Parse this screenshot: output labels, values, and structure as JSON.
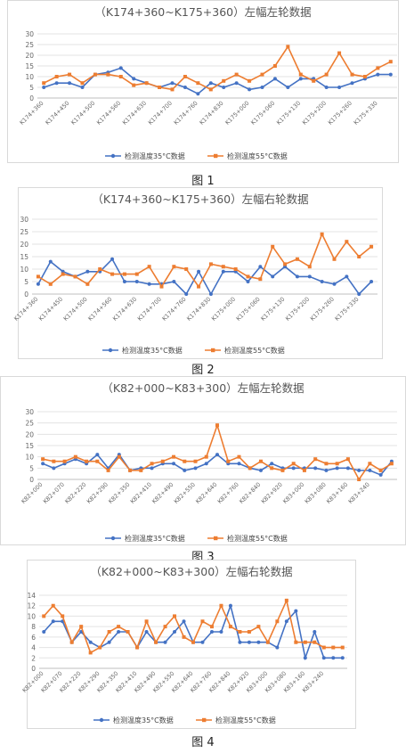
{
  "charts": [
    {
      "caption": "图 1",
      "chart_data": {
        "type": "line",
        "title": "（K174+360~K175+360）左幅左轮数据",
        "ylim": [
          0,
          30
        ],
        "yticks": [
          0,
          5,
          10,
          15,
          20,
          25,
          30
        ],
        "grid": true,
        "legend_placement": "bottom",
        "categories": [
          "K174+360",
          "K174+420",
          "K174+450",
          "K174+480",
          "K174+500",
          "K174+530",
          "K174+560",
          "K174+590",
          "K174+630",
          "K174+660",
          "K174+700",
          "K174+730",
          "K174+760",
          "K174+790",
          "K174+830",
          "K174+860",
          "K175+000",
          "K175+030",
          "K175+060",
          "K175+100",
          "K175+130",
          "K175+160",
          "K175+200",
          "K175+230",
          "K175+260",
          "K175+290",
          "K175+330",
          "K175+360"
        ],
        "tick_labels": [
          "K174+360",
          "K174+450",
          "K174+500",
          "K174+560",
          "K174+630",
          "K174+700",
          "K174+760",
          "K174+830",
          "K175+000",
          "K175+060",
          "K175+130",
          "K175+200",
          "K175+260",
          "K175+330"
        ],
        "series": [
          {
            "name": "检测温度35°C数据",
            "color": "#4472C4",
            "values": [
              5,
              7,
              7,
              5,
              11,
              12,
              14,
              9,
              7,
              5,
              7,
              5,
              2,
              7,
              5,
              7,
              4,
              5,
              9,
              5,
              9,
              9,
              5,
              5,
              7,
              9,
              11,
              11
            ]
          },
          {
            "name": "检测温度55°C数据",
            "color": "#ED7D31",
            "values": [
              7,
              10,
              11,
              7,
              11,
              11,
              10,
              6,
              7,
              5,
              4,
              10,
              7,
              4,
              8,
              11,
              8,
              11,
              15,
              24,
              11,
              8,
              11,
              21,
              11,
              10,
              14,
              17
            ]
          }
        ]
      }
    },
    {
      "caption": "图 2",
      "chart_data": {
        "type": "line",
        "title": "（K174+360~K175+360）左幅右轮数据",
        "ylim": [
          0,
          30
        ],
        "yticks": [
          0,
          5,
          10,
          15,
          20,
          25,
          30
        ],
        "grid": true,
        "legend_placement": "bottom",
        "categories": [
          "K174+360",
          "K174+420",
          "K174+450",
          "K174+480",
          "K174+500",
          "K174+530",
          "K174+560",
          "K174+590",
          "K174+630",
          "K174+660",
          "K174+700",
          "K174+730",
          "K174+760",
          "K174+790",
          "K174+830",
          "K174+860",
          "K175+000",
          "K175+030",
          "K175+060",
          "K175+100",
          "K175+130",
          "K175+160",
          "K175+200",
          "K175+230",
          "K175+260",
          "K175+290",
          "K175+330",
          "K175+360"
        ],
        "tick_labels": [
          "K174+360",
          "K174+450",
          "K174+500",
          "K174+560",
          "K174+630",
          "K174+700",
          "K174+760",
          "K174+830",
          "K175+000",
          "K175+060",
          "K175+130",
          "K175+200",
          "K175+260",
          "K175+330"
        ],
        "series": [
          {
            "name": "检测温度35°C数据",
            "color": "#4472C4",
            "values": [
              4,
              13,
              9,
              7,
              9,
              9,
              14,
              5,
              5,
              4,
              4,
              5,
              0,
              9,
              0,
              9,
              9,
              5,
              11,
              7,
              11,
              7,
              7,
              5,
              4,
              7,
              0,
              5
            ]
          },
          {
            "name": "检测温度55°C数据",
            "color": "#ED7D31",
            "values": [
              7,
              4,
              8,
              7,
              4,
              10,
              8,
              8,
              8,
              11,
              3,
              11,
              10,
              3,
              12,
              11,
              10,
              7,
              6,
              19,
              12,
              14,
              11,
              24,
              14,
              21,
              15,
              19
            ]
          }
        ]
      }
    },
    {
      "caption": "图 3",
      "chart_data": {
        "type": "line",
        "title": "（K82+000~K83+300）左幅左轮数据",
        "ylim": [
          0,
          30
        ],
        "yticks": [
          0,
          5,
          10,
          15,
          20,
          25,
          30
        ],
        "grid": true,
        "legend_placement": "bottom",
        "categories": [
          "K82+000",
          "K82+040",
          "K82+070",
          "K82+150",
          "K82+220",
          "K82+260",
          "K82+290",
          "K82+320",
          "K82+350",
          "K82+380",
          "K82+410",
          "K82+450",
          "K82+490",
          "K82+520",
          "K82+550",
          "K82+600",
          "K82+640",
          "K82+700",
          "K82+760",
          "K82+800",
          "K82+840",
          "K82+880",
          "K82+920",
          "K82+960",
          "K83+000",
          "K83+040",
          "K83+080",
          "K83+120",
          "K83+160",
          "K83+200",
          "K83+240",
          "K83+280",
          "K83+300"
        ],
        "tick_labels": [
          "K82+000",
          "K82+070",
          "K82+220",
          "K82+290",
          "K82+350",
          "K82+410",
          "K82+490",
          "K82+550",
          "K82+640",
          "K82+760",
          "K82+840",
          "K82+920",
          "K83+000",
          "K83+080",
          "K83+160",
          "K83+240"
        ],
        "series": [
          {
            "name": "检测温度35°C数据",
            "color": "#4472C4",
            "values": [
              7,
              5,
              7,
              9,
              7,
              11,
              5,
              11,
              4,
              5,
              5,
              7,
              7,
              4,
              5,
              7,
              11,
              7,
              7,
              5,
              4,
              7,
              5,
              5,
              5,
              5,
              4,
              5,
              5,
              4,
              4,
              2,
              8
            ]
          },
          {
            "name": "检测温度55°C数据",
            "color": "#ED7D31",
            "values": [
              9,
              8,
              8,
              10,
              8,
              8,
              4,
              10,
              4,
              4,
              7,
              8,
              10,
              8,
              8,
              10,
              24,
              8,
              10,
              5,
              8,
              5,
              4,
              7,
              4,
              9,
              7,
              7,
              9,
              0,
              7,
              4,
              7
            ]
          }
        ]
      }
    },
    {
      "caption": "图 4",
      "chart_data": {
        "type": "line",
        "title": "（K82+000~K83+300）左幅右轮数据",
        "ylim": [
          0,
          14
        ],
        "yticks": [
          0,
          2,
          4,
          6,
          8,
          10,
          12,
          14
        ],
        "grid": true,
        "legend_placement": "bottom",
        "categories": [
          "K82+000",
          "K82+040",
          "K82+070",
          "K82+150",
          "K82+220",
          "K82+260",
          "K82+290",
          "K82+320",
          "K82+350",
          "K82+380",
          "K82+410",
          "K82+450",
          "K82+490",
          "K82+520",
          "K82+550",
          "K82+600",
          "K82+640",
          "K82+700",
          "K82+760",
          "K82+800",
          "K82+840",
          "K82+880",
          "K82+920",
          "K82+960",
          "K83+000",
          "K83+040",
          "K83+080",
          "K83+120",
          "K83+160",
          "K83+200",
          "K83+240",
          "K83+280",
          "K83+300"
        ],
        "tick_labels": [
          "K82+000",
          "K82+070",
          "K82+220",
          "K82+290",
          "K82+350",
          "K82+410",
          "K82+490",
          "K82+550",
          "K82+640",
          "K82+760",
          "K82+840",
          "K82+920",
          "K83+000",
          "K83+080",
          "K83+160",
          "K83+240"
        ],
        "series": [
          {
            "name": "检测温度35°C数据",
            "color": "#4472C4",
            "values": [
              7,
              9,
              9,
              5,
              7,
              5,
              4,
              5,
              7,
              7,
              4,
              7,
              5,
              5,
              7,
              9,
              5,
              5,
              7,
              7,
              12,
              5,
              5,
              5,
              5,
              4,
              9,
              11,
              2,
              7,
              2,
              2,
              2
            ]
          },
          {
            "name": "检测温度55°C数据",
            "color": "#ED7D31",
            "values": [
              10,
              12,
              10,
              5,
              8,
              3,
              4,
              7,
              8,
              7,
              4,
              9,
              5,
              8,
              10,
              6,
              5,
              9,
              8,
              12,
              8,
              7,
              7,
              8,
              5,
              9,
              13,
              5,
              5,
              5,
              4,
              4,
              4
            ]
          }
        ]
      }
    }
  ]
}
